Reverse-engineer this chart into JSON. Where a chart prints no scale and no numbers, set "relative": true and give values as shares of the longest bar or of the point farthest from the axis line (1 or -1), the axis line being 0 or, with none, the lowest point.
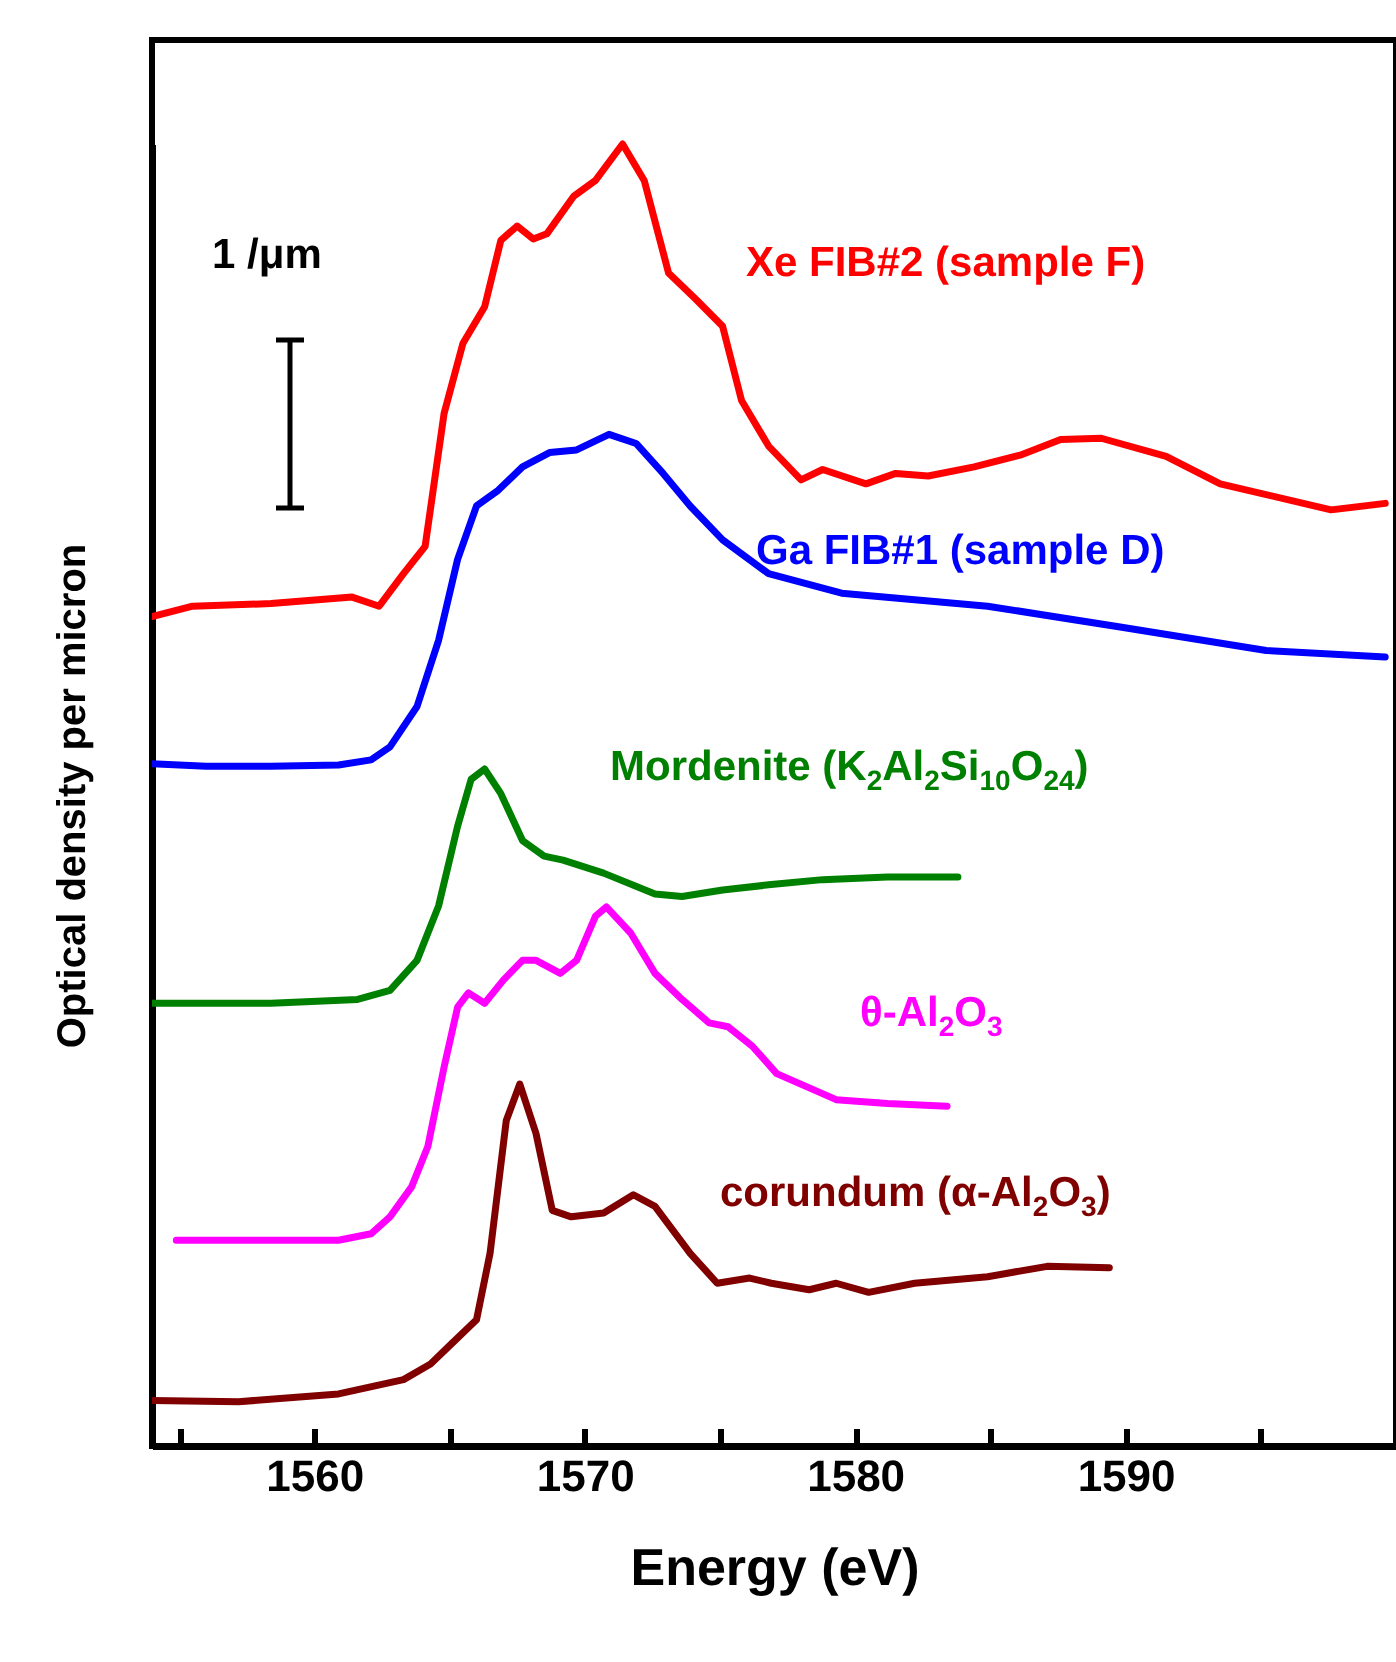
{
  "chart_data": {
    "type": "line",
    "xlabel": "Energy (eV)",
    "ylabel": "Optical density per micron",
    "relative": true,
    "tick_labels": "x",
    "annotations": [
      "1 /μm"
    ],
    "xlim": [
      1554,
      1600
    ],
    "xticks": [
      {
        "value": 1555,
        "label": null
      },
      1560,
      {
        "value": 1565,
        "label": null
      },
      1570,
      {
        "value": 1575,
        "label": null
      },
      1580,
      {
        "value": 1585,
        "label": null
      },
      1590,
      {
        "value": 1595,
        "label": null
      }
    ],
    "series": [
      {
        "name": "Xe FIB#2  (sample F)",
        "color": "#ff0000",
        "x": [
          1554.0,
          1555.5,
          1558.4,
          1561.4,
          1562.4,
          1563.3,
          1564.1,
          1564.8,
          1565.5,
          1566.3,
          1566.9,
          1567.5,
          1568.1,
          1568.6,
          1569.6,
          1570.4,
          1571.4,
          1572.2,
          1573.1,
          1574.1,
          1575.1,
          1575.8,
          1576.8,
          1578.0,
          1578.8,
          1580.4,
          1581.5,
          1582.7,
          1584.4,
          1586.1,
          1587.6,
          1589.1,
          1591.5,
          1593.5,
          1597.6,
          1599.6
        ],
        "values": [
          0.637,
          0.645,
          0.647,
          0.652,
          0.645,
          0.67,
          0.691,
          0.793,
          0.847,
          0.875,
          0.926,
          0.937,
          0.927,
          0.931,
          0.96,
          0.972,
          1.0,
          0.972,
          0.901,
          0.881,
          0.86,
          0.803,
          0.768,
          0.742,
          0.75,
          0.739,
          0.747,
          0.745,
          0.752,
          0.761,
          0.773,
          0.774,
          0.76,
          0.739,
          0.719,
          0.724
        ]
      },
      {
        "name": "Ga FIB#1  (sample D)",
        "color": "#0000ff",
        "x": [
          1554.0,
          1556.0,
          1558.4,
          1560.9,
          1562.1,
          1562.8,
          1563.8,
          1564.6,
          1565.3,
          1566.0,
          1566.8,
          1567.7,
          1568.7,
          1569.7,
          1570.9,
          1571.9,
          1572.9,
          1573.9,
          1575.1,
          1576.8,
          1579.5,
          1584.9,
          1589.8,
          1595.2,
          1599.6
        ],
        "values": [
          0.524,
          0.522,
          0.522,
          0.523,
          0.527,
          0.537,
          0.568,
          0.619,
          0.681,
          0.722,
          0.734,
          0.752,
          0.763,
          0.765,
          0.777,
          0.77,
          0.747,
          0.722,
          0.696,
          0.67,
          0.655,
          0.645,
          0.629,
          0.611,
          0.606
        ]
      },
      {
        "name": "Mordenite (K$_{2}$Al$_{2}$Si$_{10}$O$_{24}$)",
        "color": "#008000",
        "x": [
          1554.0,
          1558.4,
          1561.6,
          1562.8,
          1563.8,
          1564.6,
          1565.3,
          1565.8,
          1566.3,
          1566.9,
          1567.7,
          1568.5,
          1569.2,
          1570.7,
          1572.6,
          1573.6,
          1575.1,
          1576.8,
          1578.8,
          1581.2,
          1583.8
        ],
        "values": [
          0.34,
          0.34,
          0.343,
          0.35,
          0.373,
          0.415,
          0.476,
          0.512,
          0.52,
          0.501,
          0.465,
          0.453,
          0.45,
          0.44,
          0.424,
          0.422,
          0.427,
          0.431,
          0.435,
          0.437,
          0.437
        ]
      },
      {
        "name": "θ-Al$_{2}$O$_{3}$",
        "color": "#ff00ff",
        "x": [
          1554.9,
          1560.9,
          1562.1,
          1562.8,
          1563.6,
          1564.2,
          1564.8,
          1565.3,
          1565.7,
          1566.3,
          1567.0,
          1567.7,
          1568.2,
          1569.1,
          1569.7,
          1570.4,
          1570.8,
          1571.7,
          1572.6,
          1573.6,
          1574.6,
          1575.3,
          1576.2,
          1577.1,
          1579.3,
          1581.2,
          1583.4
        ],
        "values": [
          0.158,
          0.158,
          0.163,
          0.176,
          0.199,
          0.23,
          0.291,
          0.337,
          0.348,
          0.34,
          0.358,
          0.373,
          0.373,
          0.363,
          0.373,
          0.407,
          0.414,
          0.394,
          0.363,
          0.343,
          0.325,
          0.322,
          0.307,
          0.286,
          0.266,
          0.263,
          0.261
        ]
      },
      {
        "name": "corundum (α-Al$_{2}$O$_{3}$)",
        "color": "#800000",
        "x": [
          1554.0,
          1557.2,
          1560.9,
          1563.3,
          1564.3,
          1565.1,
          1566.0,
          1566.5,
          1567.1,
          1567.6,
          1568.2,
          1568.8,
          1569.5,
          1570.7,
          1571.8,
          1572.6,
          1573.9,
          1574.9,
          1576.1,
          1576.9,
          1578.3,
          1579.3,
          1580.5,
          1582.2,
          1584.9,
          1587.1,
          1589.4
        ],
        "values": [
          0.035,
          0.034,
          0.04,
          0.051,
          0.063,
          0.079,
          0.097,
          0.148,
          0.25,
          0.278,
          0.24,
          0.181,
          0.176,
          0.179,
          0.193,
          0.184,
          0.148,
          0.125,
          0.129,
          0.125,
          0.12,
          0.125,
          0.118,
          0.125,
          0.13,
          0.138,
          0.137
        ]
      }
    ]
  }
}
